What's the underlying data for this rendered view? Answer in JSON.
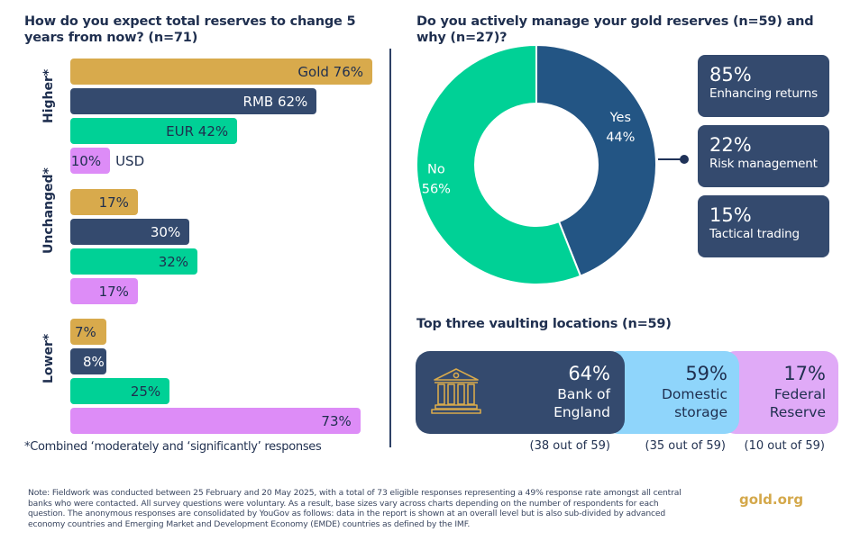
{
  "left_title": "How do you expect total reserves to change 5 years from now? (n=71)",
  "right_title": "Do you actively manage your gold reserves (n=59) and why (n=27)?",
  "vault_title": "Top three vaulting locations (n=59)",
  "footnote": "*Combined ‘moderately and ‘significantly’ responses",
  "note": "Note: Fieldwork was conducted between 25 February and 20 May 2025, with a total of 73 eligible responses representing a 49% response rate amongst all central banks who were contacted. All survey questions were voluntary. As a result, base sizes vary across charts depending on the number of respondents for each question. The anonymous responses are consolidated by YouGov as follows: data in the report is shown at an  overall level but is also sub-divided by advanced economy countries and Emerging Market and Development Economy (EMDE) countries as defined by the IMF.",
  "brand": "gold.org",
  "colors": {
    "gold": "#d8aa4c",
    "rmb": "#344a6e",
    "eur": "#00d196",
    "usd": "#dd8cf7",
    "donut_yes": "#235584",
    "donut_no": "#00d196",
    "vault_boe": "#344a6e",
    "vault_domestic": "#8fd5fb",
    "vault_fed": "#e0aaf7"
  },
  "chart_data": [
    {
      "type": "bar",
      "orientation": "horizontal",
      "title": "How do you expect total reserves to change 5 years from now? (n=71)",
      "categories": [
        "Higher*",
        "Unchanged*",
        "Lower*"
      ],
      "series": [
        {
          "name": "Gold",
          "values": [
            76,
            17,
            7
          ]
        },
        {
          "name": "RMB",
          "values": [
            62,
            30,
            8
          ]
        },
        {
          "name": "EUR",
          "values": [
            42,
            32,
            25
          ]
        },
        {
          "name": "USD",
          "values": [
            10,
            17,
            73
          ]
        }
      ],
      "bar_labels": {
        "Higher*": [
          "Gold 76%",
          "RMB 62%",
          "EUR 42%",
          "10%"
        ],
        "Unchanged*": [
          "17%",
          "30%",
          "32%",
          "17%"
        ],
        "Lower*": [
          "7%",
          "8%",
          "25%",
          "73%"
        ]
      },
      "outside_labels": {
        "Higher*": [
          "",
          "",
          "",
          "USD"
        ]
      },
      "unit": "%",
      "xlim": [
        0,
        76
      ],
      "grid": false,
      "footnote": "*Combined ‘moderately and ‘significantly’ responses"
    },
    {
      "type": "pie",
      "variant": "donut",
      "title": "Do you actively manage your gold reserves (n=59) and why (n=27)?",
      "slices": [
        {
          "label": "Yes",
          "value": 44,
          "display": "44%"
        },
        {
          "label": "No",
          "value": 56,
          "display": "56%"
        }
      ],
      "reasons": [
        {
          "pct": "85%",
          "label": "Enhancing returns",
          "value": 85
        },
        {
          "pct": "22%",
          "label": "Risk management",
          "value": 22
        },
        {
          "pct": "15%",
          "label": "Tactical trading",
          "value": 15
        }
      ]
    },
    {
      "type": "table",
      "title": "Top three vaulting locations (n=59)",
      "rows": [
        {
          "pct": "64%",
          "name_line1": "Bank of",
          "name_line2": "England",
          "count": "(38 out of 59)",
          "value": 64
        },
        {
          "pct": "59%",
          "name_line1": "Domestic",
          "name_line2": "storage",
          "count": "(35 out of 59)",
          "value": 59
        },
        {
          "pct": "17%",
          "name_line1": "Federal",
          "name_line2": "Reserve",
          "count": "(10 out of 59)",
          "value": 17
        }
      ]
    }
  ]
}
